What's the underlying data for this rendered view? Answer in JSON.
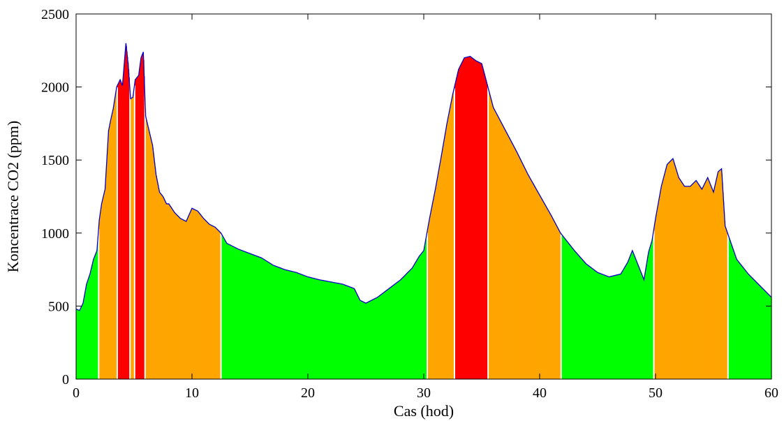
{
  "chart_data": {
    "type": "area",
    "title": "",
    "xlabel": "Cas (hod)",
    "ylabel": "Koncentrace CO2 (ppm)",
    "xlim": [
      0,
      60
    ],
    "ylim": [
      0,
      2500
    ],
    "xticks": [
      0,
      10,
      20,
      30,
      40,
      50,
      60
    ],
    "yticks": [
      0,
      500,
      1000,
      1500,
      2000,
      2500
    ],
    "grid": false,
    "line_color": "#0000cc",
    "fill_note": "area colored by level: green < 1000, orange 1000-2000, red > 2000",
    "colors": {
      "green": "#00ff00",
      "orange": "#ffa500",
      "red": "#ff0000"
    },
    "series": [
      {
        "x": [
          0,
          0.3,
          0.6,
          0.9,
          1.2,
          1.5,
          1.8,
          2.0,
          2.2,
          2.5,
          2.8,
          3.0,
          3.2,
          3.5,
          3.8,
          4.0,
          4.3,
          4.5,
          4.7,
          4.9,
          5.1,
          5.4,
          5.6,
          5.8,
          6.0,
          6.3,
          6.6,
          6.9,
          7.2,
          7.5,
          7.8,
          8.0,
          8.5,
          9.0,
          9.5,
          10.0,
          10.5,
          11.0,
          11.5,
          12.0,
          12.5,
          13.0,
          14.0,
          15.0,
          16.0,
          17.0,
          18.0,
          19.0,
          20.0,
          21.0,
          22.0,
          23.0,
          24.0,
          24.5,
          25.0,
          26.0,
          27.0,
          28.0,
          29.0,
          29.6,
          30.0,
          30.5,
          31.0,
          31.5,
          32.0,
          32.5,
          33.0,
          33.5,
          34.0,
          34.5,
          35.0,
          35.5,
          36.0,
          37.0,
          38.0,
          39.0,
          40.0,
          41.0,
          41.8,
          42.5,
          43.0,
          44.0,
          45.0,
          46.0,
          47.0,
          47.6,
          48.0,
          48.5,
          49.0,
          49.4,
          49.7,
          50.0,
          50.5,
          51.0,
          51.5,
          52.0,
          52.5,
          53.0,
          53.5,
          54.0,
          54.5,
          55.0,
          55.4,
          55.7,
          56.0,
          56.3,
          57.0,
          58.0,
          59.0,
          60.0
        ],
        "y": [
          480,
          470,
          520,
          650,
          720,
          820,
          880,
          1090,
          1200,
          1300,
          1700,
          1780,
          1850,
          2000,
          2050,
          2010,
          2300,
          2150,
          1920,
          1930,
          2050,
          2080,
          2200,
          2240,
          1800,
          1700,
          1600,
          1400,
          1280,
          1250,
          1200,
          1200,
          1140,
          1100,
          1080,
          1170,
          1150,
          1100,
          1060,
          1040,
          1000,
          930,
          890,
          860,
          830,
          780,
          750,
          730,
          700,
          680,
          665,
          650,
          620,
          540,
          520,
          560,
          620,
          680,
          760,
          840,
          880,
          1100,
          1300,
          1520,
          1750,
          1950,
          2120,
          2200,
          2210,
          2180,
          2160,
          2010,
          1860,
          1710,
          1560,
          1400,
          1260,
          1120,
          1000,
          930,
          880,
          790,
          730,
          700,
          720,
          800,
          880,
          780,
          680,
          870,
          950,
          1100,
          1320,
          1470,
          1510,
          1380,
          1320,
          1320,
          1360,
          1300,
          1380,
          1280,
          1420,
          1440,
          1050,
          980,
          820,
          720,
          640,
          560
        ]
      }
    ]
  }
}
